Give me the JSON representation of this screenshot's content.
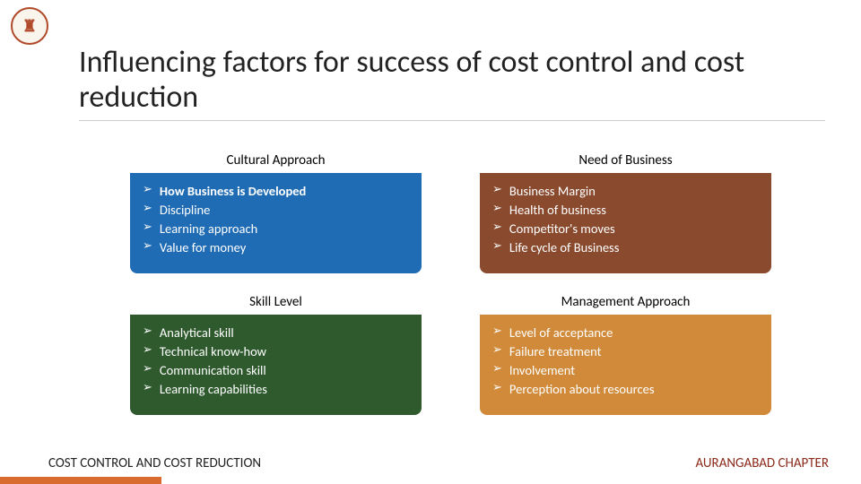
{
  "title": "Influencing factors for success of cost control and cost reduction",
  "footer_left": "COST CONTROL AND COST REDUCTION",
  "footer_right": "AURANGABAD CHAPTER",
  "cards": [
    {
      "header": "Cultural Approach",
      "header_bg": "#ffffff",
      "body_bg": "#1f6cb5",
      "bold_first": true,
      "items": [
        "How Business is Developed",
        "Discipline",
        "Learning approach",
        "Value for money"
      ]
    },
    {
      "header": "Need of Business",
      "header_bg": "#ffffff",
      "body_bg": "#8a4a2e",
      "bold_first": false,
      "items": [
        "Business Margin",
        "Health of business",
        "Competitor's moves",
        "Life cycle of Business"
      ]
    },
    {
      "header": "Skill Level",
      "header_bg": "#ffffff",
      "body_bg": "#2e5a2e",
      "bold_first": false,
      "items": [
        "Analytical skill",
        "Technical know-how",
        "Communication skill",
        "Learning capabilities"
      ]
    },
    {
      "header": "Management Approach",
      "header_bg": "#ffffff",
      "body_bg": "#d08a3a",
      "bold_first": false,
      "items": [
        "Level of acceptance",
        "Failure treatment",
        "Involvement",
        "Perception about resources"
      ]
    }
  ],
  "bullet_glyph": "➢",
  "colors": {
    "title_color": "#222222",
    "footer_right_color": "#8c2b1c",
    "accent_bar": "#d96b2e"
  }
}
